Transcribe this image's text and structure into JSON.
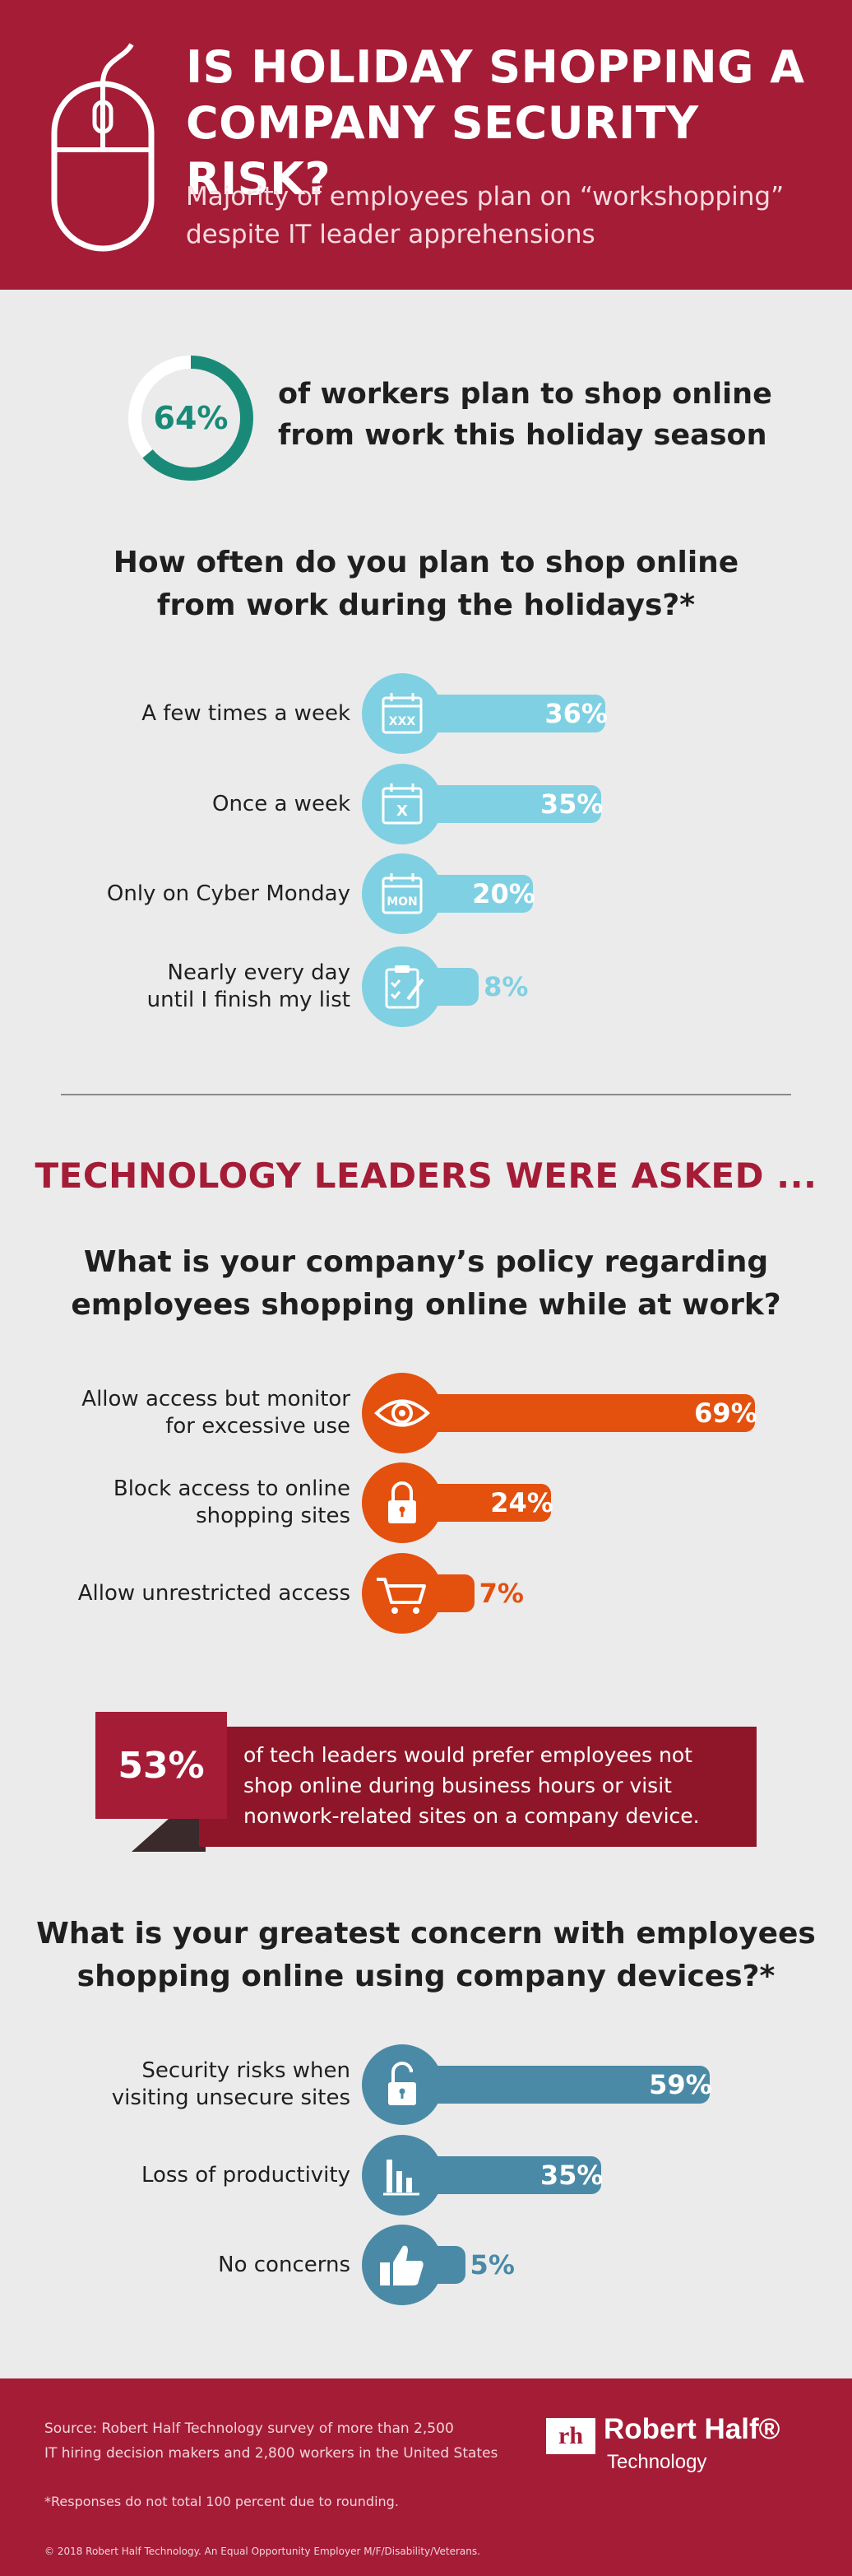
{
  "header": {
    "title_line1": "IS HOLIDAY SHOPPING A",
    "title_line2": "COMPANY SECURITY RISK?",
    "subtitle_line1": "Majority of employees plan on “workshopping”",
    "subtitle_line2": "despite IT leader apprehensions"
  },
  "intro_stat": {
    "value": "64%",
    "fraction": 0.64,
    "text_line1": "of workers plan to shop online",
    "text_line2": "from work this holiday season"
  },
  "q1": {
    "line1": "How often do you plan to shop online",
    "line2": "from work during the holidays?*"
  },
  "technology_leaders_heading": "TECHNOLOGY LEADERS WERE ASKED ...",
  "q2": {
    "line1": "What is your company’s policy regarding",
    "line2": "employees shopping online while at work?"
  },
  "banner": {
    "value": "53%",
    "text_line1": "of tech leaders would prefer employees not",
    "text_line2": "shop online during business hours or visit",
    "text_line3": "nonwork-related sites on a company device."
  },
  "q3": {
    "line1": "What is your greatest concern with employees",
    "line2": "shopping online using company devices?*"
  },
  "colors": {
    "brand_red": "#a51c36",
    "teal_ring": "#1a8a78",
    "light_blue": "#7fd0e3",
    "orange": "#e4500e",
    "steel_blue": "#4a8aa6"
  },
  "chart_data": [
    {
      "type": "bar",
      "title": "How often do you plan to shop online from work during the holidays?*",
      "categories": [
        "A few times a week",
        "Once a week",
        "Only on Cyber Monday",
        "Nearly every day until I finish my list"
      ],
      "values": [
        36,
        35,
        20,
        8
      ],
      "labels": [
        "36%",
        "35%",
        "20%",
        "8%"
      ],
      "icons": [
        "calendar-xxx-icon",
        "calendar-x-icon",
        "calendar-mon-icon",
        "clipboard-icon"
      ],
      "color": "#7fd0e3"
    },
    {
      "type": "bar",
      "title": "What is your company’s policy regarding employees shopping online while at work?",
      "categories": [
        "Allow access but monitor for excessive use",
        "Block access to online shopping sites",
        "Allow unrestricted access"
      ],
      "values": [
        69,
        24,
        7
      ],
      "labels": [
        "69%",
        "24%",
        "7%"
      ],
      "icons": [
        "eye-icon",
        "padlock-icon",
        "shopping-cart-icon"
      ],
      "color": "#e4500e"
    },
    {
      "type": "bar",
      "title": "What is your greatest concern with employees shopping online using company devices?*",
      "categories": [
        "Security risks when visiting unsecure sites",
        "Loss of productivity",
        "No concerns"
      ],
      "values": [
        59,
        35,
        5
      ],
      "labels": [
        "59%",
        "35%",
        "5%"
      ],
      "icons": [
        "open-padlock-icon",
        "bar-chart-icon",
        "thumbs-up-icon"
      ],
      "color": "#4a8aa6"
    }
  ],
  "labels": {
    "q1_rows": [
      [
        "A few times a week"
      ],
      [
        "Once a week"
      ],
      [
        "Only on Cyber Monday"
      ],
      [
        "Nearly every day",
        "until I finish my list"
      ]
    ],
    "q2_rows": [
      [
        "Allow access but monitor",
        "for excessive use"
      ],
      [
        "Block access to online",
        "shopping sites"
      ],
      [
        "Allow unrestricted access"
      ]
    ],
    "q3_rows": [
      [
        "Security risks when",
        "visiting unsecure sites"
      ],
      [
        "Loss of productivity"
      ],
      [
        "No concerns"
      ]
    ],
    "icon_text": {
      "xxx": "XXX",
      "x": "X",
      "mon": "MON"
    }
  },
  "footer": {
    "source_line1": "Source: Robert Half Technology survey of more than 2,500",
    "source_line2": "IT hiring decision makers and 2,800 workers in the United States",
    "note": "*Responses do not total 100 percent due to rounding.",
    "copyright": "© 2018 Robert Half Technology. An Equal Opportunity Employer M/F/Disability/Veterans.",
    "logo_mark": "rh",
    "logo_name": "Robert Half®",
    "logo_sub": "Technology"
  }
}
